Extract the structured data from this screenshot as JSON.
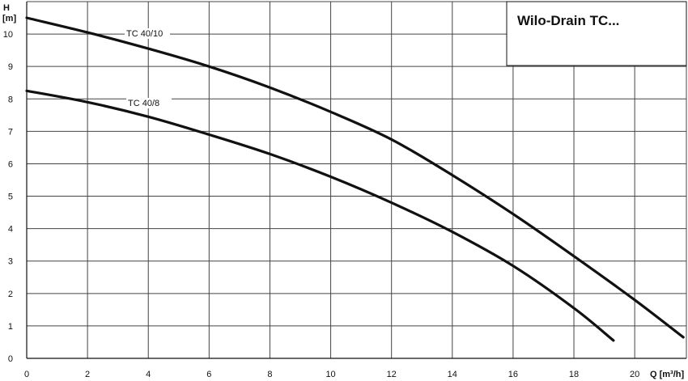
{
  "chart_data": {
    "type": "line",
    "title": "Wilo-Drain TC...",
    "xlabel": "Q [m³/h]",
    "ylabel_top": "H",
    "ylabel_unit": "[m]",
    "xlim": [
      0,
      21.7
    ],
    "ylim": [
      0,
      11
    ],
    "x_ticks": [
      0,
      2,
      4,
      6,
      8,
      10,
      12,
      14,
      16,
      18,
      20
    ],
    "y_ticks": [
      0,
      1,
      2,
      3,
      4,
      5,
      6,
      7,
      8,
      9,
      10
    ],
    "grid": true,
    "series": [
      {
        "name": "TC 40/10",
        "x": [
          0,
          2,
          4,
          6,
          8,
          10,
          12,
          14,
          16,
          18,
          20,
          21.6
        ],
        "y": [
          10.5,
          10.05,
          9.55,
          9.0,
          8.35,
          7.6,
          6.75,
          5.65,
          4.45,
          3.15,
          1.8,
          0.65
        ]
      },
      {
        "name": "TC 40/8",
        "x": [
          0,
          2,
          4,
          6,
          8,
          10,
          12,
          14,
          16,
          18,
          19.3
        ],
        "y": [
          8.25,
          7.9,
          7.45,
          6.9,
          6.3,
          5.6,
          4.8,
          3.9,
          2.85,
          1.55,
          0.55
        ]
      }
    ]
  }
}
